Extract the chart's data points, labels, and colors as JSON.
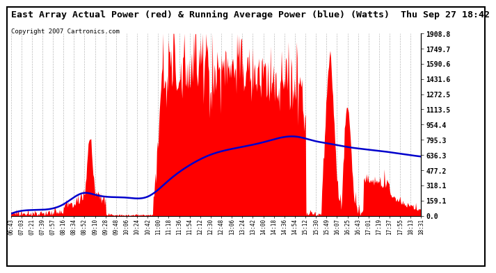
{
  "title": "East Array Actual Power (red) & Running Average Power (blue) (Watts)  Thu Sep 27 18:42",
  "copyright": "Copyright 2007 Cartronics.com",
  "yticks": [
    0.0,
    159.1,
    318.1,
    477.2,
    636.3,
    795.3,
    954.4,
    1113.5,
    1272.5,
    1431.6,
    1590.6,
    1749.7,
    1908.8
  ],
  "ymax": 1908.8,
  "ymin": 0.0,
  "x_labels": [
    "06:43",
    "07:03",
    "07:21",
    "07:39",
    "07:57",
    "08:16",
    "08:34",
    "08:52",
    "09:10",
    "09:28",
    "09:48",
    "10:06",
    "10:24",
    "10:42",
    "11:00",
    "11:18",
    "11:36",
    "11:54",
    "12:12",
    "12:30",
    "12:48",
    "13:06",
    "13:24",
    "13:42",
    "14:00",
    "14:18",
    "14:36",
    "14:54",
    "15:12",
    "15:30",
    "15:49",
    "16:07",
    "16:25",
    "16:43",
    "17:01",
    "17:19",
    "17:37",
    "17:55",
    "18:13",
    "18:31"
  ],
  "bg_color": "#ffffff",
  "actual_color": "#ff0000",
  "avg_color": "#0000cc",
  "grid_color": "#aaaaaa",
  "border_color": "#000000",
  "title_fontsize": 9.5,
  "copyright_fontsize": 6.5,
  "tick_fontsize": 5.5,
  "ytick_fontsize": 7.0
}
